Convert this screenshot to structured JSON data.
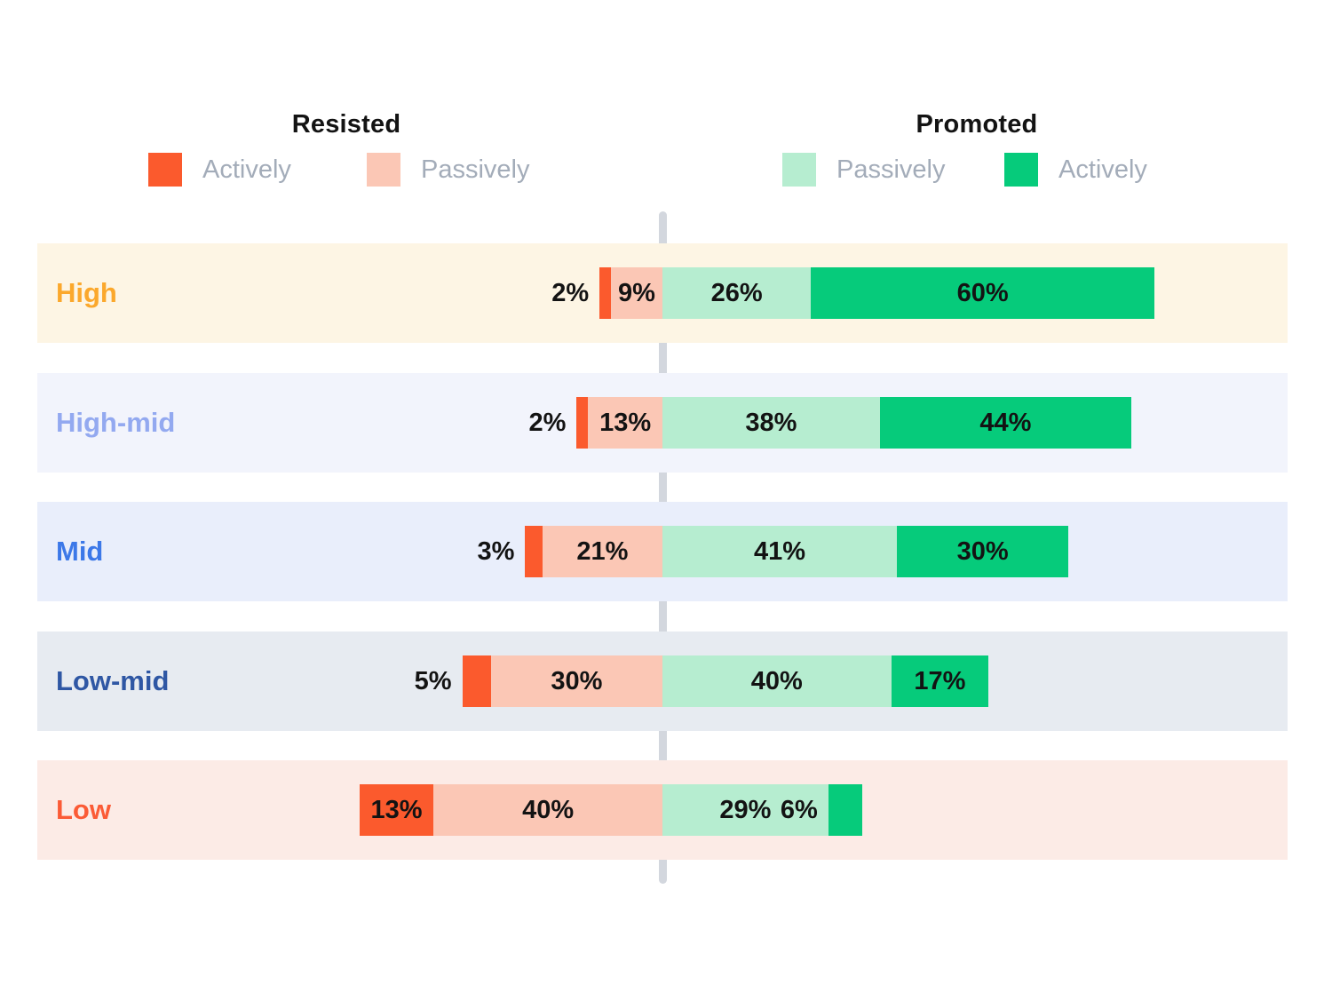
{
  "legend": {
    "resisted": {
      "title": "Resisted",
      "items": [
        {
          "label": "Actively",
          "color": "#FB5A2D",
          "series_key": "actively_resisted"
        },
        {
          "label": "Passively",
          "color": "#FBC7B5",
          "series_key": "passively_resisted"
        }
      ]
    },
    "promoted": {
      "title": "Promoted",
      "items": [
        {
          "label": "Passively",
          "color": "#B6EDD0",
          "series_key": "passively_promoted"
        },
        {
          "label": "Actively",
          "color": "#06CB7B",
          "series_key": "actively_promoted"
        }
      ]
    }
  },
  "chart_data": {
    "type": "bar",
    "variant": "diverging-stacked-horizontal",
    "unit": "%",
    "value_label_format": "{value}%",
    "legend_position": "top",
    "center_value": 0,
    "categories": [
      "High",
      "High-mid",
      "Mid",
      "Low-mid",
      "Low"
    ],
    "series": [
      {
        "name": "Actively resisted",
        "side": "left",
        "color": "#FB5A2D",
        "values": [
          2,
          2,
          3,
          5,
          13
        ]
      },
      {
        "name": "Passively resisted",
        "side": "left",
        "color": "#FBC7B5",
        "values": [
          9,
          13,
          21,
          30,
          40
        ]
      },
      {
        "name": "Passively promoted",
        "side": "right",
        "color": "#B6EDD0",
        "values": [
          26,
          38,
          41,
          40,
          29
        ]
      },
      {
        "name": "Actively promoted",
        "side": "right",
        "color": "#06CB7B",
        "values": [
          60,
          44,
          30,
          17,
          6
        ]
      }
    ],
    "row_styles": [
      {
        "band_color": "#FDF5E4",
        "label_color": "#FBA82C"
      },
      {
        "band_color": "#F2F4FC",
        "label_color": "#93A9F0"
      },
      {
        "band_color": "#E9EEFB",
        "label_color": "#3C78E8"
      },
      {
        "band_color": "#E7EBF1",
        "label_color": "#2F57A4"
      },
      {
        "band_color": "#FCEBE6",
        "label_color": "#FB5B36"
      }
    ],
    "center_line_color": "#D3D7DE"
  }
}
